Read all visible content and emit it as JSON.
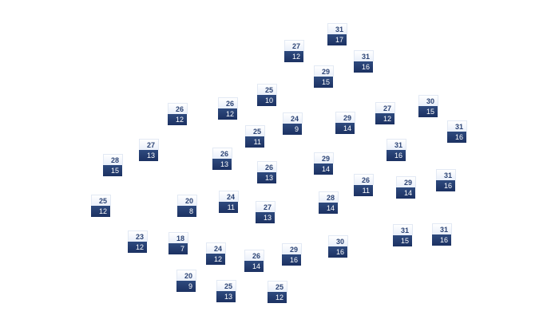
{
  "colors": {
    "high_text": "#2c4475",
    "low_background": "#1c3162",
    "low_text": "#ffffff"
  },
  "markers": [
    {
      "high": "31",
      "low": "17"
    },
    {
      "high": "27",
      "low": "12"
    },
    {
      "high": "31",
      "low": "16"
    },
    {
      "high": "29",
      "low": "15"
    },
    {
      "high": "25",
      "low": "10"
    },
    {
      "high": "26",
      "low": "12"
    },
    {
      "high": "26",
      "low": "12"
    },
    {
      "high": "24",
      "low": "9"
    },
    {
      "high": "29",
      "low": "14"
    },
    {
      "high": "27",
      "low": "12"
    },
    {
      "high": "30",
      "low": "15"
    },
    {
      "high": "31",
      "low": "16"
    },
    {
      "high": "25",
      "low": "11"
    },
    {
      "high": "27",
      "low": "13"
    },
    {
      "high": "26",
      "low": "13"
    },
    {
      "high": "28",
      "low": "15"
    },
    {
      "high": "31",
      "low": "16"
    },
    {
      "high": "29",
      "low": "14"
    },
    {
      "high": "26",
      "low": "13"
    },
    {
      "high": "25",
      "low": "12"
    },
    {
      "high": "20",
      "low": "8"
    },
    {
      "high": "24",
      "low": "11"
    },
    {
      "high": "27",
      "low": "13"
    },
    {
      "high": "23",
      "low": "12"
    },
    {
      "high": "18",
      "low": "7"
    },
    {
      "high": "24",
      "low": "12"
    },
    {
      "high": "26",
      "low": "14"
    },
    {
      "high": "20",
      "low": "9"
    },
    {
      "high": "25",
      "low": "13"
    },
    {
      "high": "25",
      "low": "12"
    },
    {
      "high": "29",
      "low": "16"
    },
    {
      "high": "30",
      "low": "16"
    },
    {
      "high": "28",
      "low": "14"
    },
    {
      "high": "26",
      "low": "11"
    },
    {
      "high": "29",
      "low": "14"
    },
    {
      "high": "31",
      "low": "16"
    },
    {
      "high": "31",
      "low": "15"
    },
    {
      "high": "31",
      "low": "16"
    }
  ]
}
